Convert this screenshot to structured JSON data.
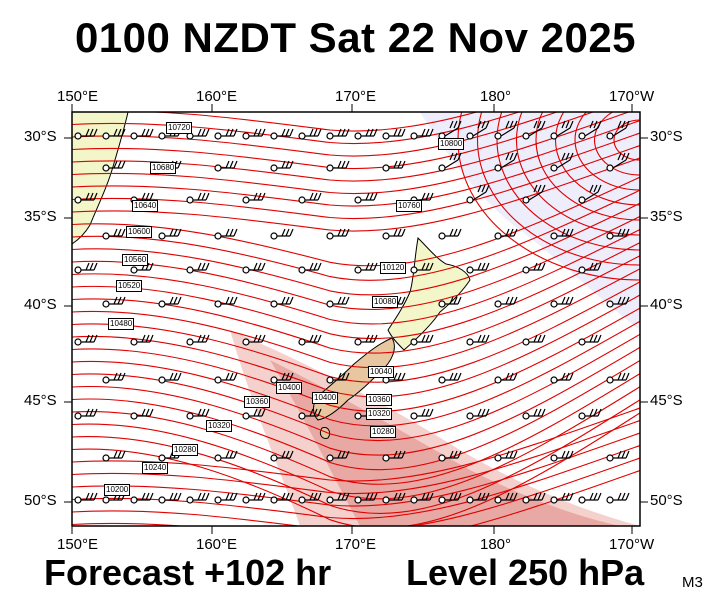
{
  "header": {
    "title": "0100 NZDT Sat 22 Nov 2025"
  },
  "footer": {
    "forecast": "Forecast +102 hr",
    "level": "Level 250 hPa",
    "model": "M3"
  },
  "map": {
    "lon_labels": [
      "150°E",
      "160°E",
      "170°E",
      "180°",
      "170°W"
    ],
    "lat_labels": [
      "30°S",
      "35°S",
      "40°S",
      "45°S",
      "50°S"
    ],
    "contour_labels": [
      "10720",
      "10680",
      "10640",
      "10600",
      "10560",
      "10520",
      "10480",
      "10400",
      "10360",
      "10320",
      "10280",
      "10240",
      "10200",
      "10800",
      "10760",
      "10120",
      "10080",
      "10040",
      "10400",
      "10360",
      "10320",
      "10280"
    ],
    "colors": {
      "contour": "#e00000",
      "land": "#f3f6c8",
      "high_shade": "#eeeefb",
      "jet_shade": "#c8342a"
    }
  }
}
